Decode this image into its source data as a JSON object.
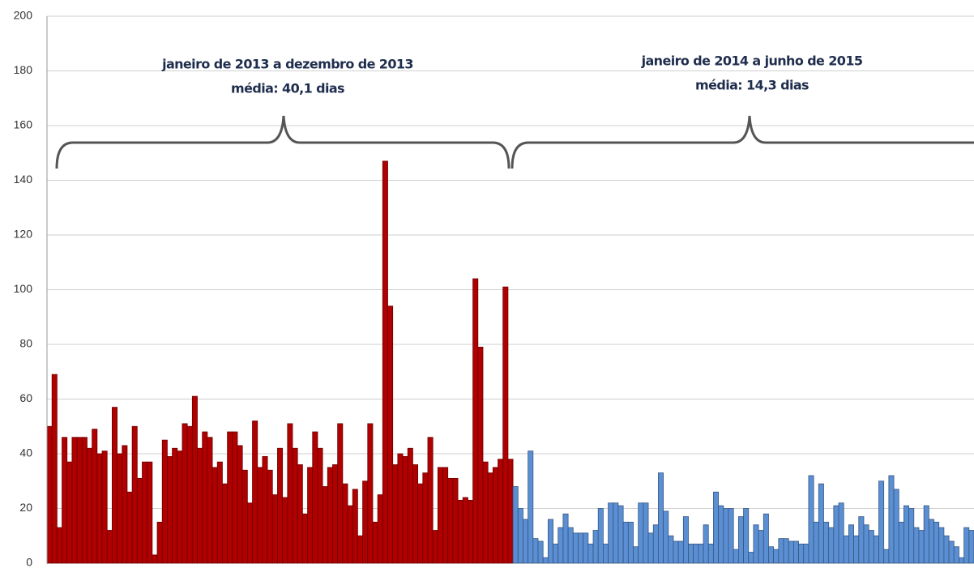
{
  "chart_data": {
    "type": "bar",
    "annotations": [
      [
        "janeiro de 2013 a dezembro de 2013",
        "média: 40,1 dias"
      ],
      [
        "janeiro de 2014 a junho de 2015",
        "média: 14,3 dias"
      ]
    ],
    "series": [
      {
        "color": "#b00000",
        "values": [
          50,
          69,
          13,
          46,
          37,
          46,
          46,
          46,
          42,
          49,
          40,
          41,
          12,
          57,
          40,
          43,
          26,
          50,
          31,
          37,
          37,
          3,
          15,
          45,
          39,
          42,
          41,
          51,
          50,
          61,
          42,
          48,
          46,
          35,
          37,
          29,
          48,
          48,
          43,
          34,
          22,
          52,
          35,
          39,
          34,
          25,
          42,
          24,
          51,
          42,
          36,
          18,
          35,
          48,
          42,
          28,
          35,
          36,
          51,
          29,
          21,
          27,
          10,
          30,
          51,
          15,
          25,
          147,
          94,
          36,
          40,
          39,
          42,
          36,
          29,
          33,
          46,
          12,
          35,
          35,
          31,
          31,
          23,
          24,
          23,
          104,
          79,
          37,
          33,
          35,
          38,
          101,
          38
        ]
      },
      {
        "color": "#5b8fd4",
        "values": [
          28,
          20,
          16,
          41,
          9,
          8,
          2,
          16,
          7,
          13,
          18,
          13,
          11,
          11,
          11,
          7,
          12,
          20,
          7,
          22,
          22,
          21,
          15,
          15,
          6,
          22,
          22,
          11,
          14,
          33,
          19,
          10,
          8,
          8,
          17,
          7,
          7,
          7,
          14,
          7,
          26,
          21,
          20,
          20,
          5,
          17,
          20,
          4,
          14,
          12,
          18,
          6,
          5,
          9,
          9,
          8,
          8,
          7,
          7,
          32,
          15,
          29,
          15,
          13,
          21,
          22,
          10,
          14,
          10,
          17,
          14,
          12,
          10,
          30,
          5,
          32,
          27,
          15,
          21,
          20,
          13,
          12,
          21,
          16,
          15,
          13,
          10,
          8,
          6,
          2,
          13,
          12
        ]
      }
    ],
    "ylim": [
      0,
      200
    ],
    "yticks": [
      0,
      20,
      40,
      60,
      80,
      100,
      120,
      140,
      160,
      180,
      200
    ],
    "grid": true
  }
}
